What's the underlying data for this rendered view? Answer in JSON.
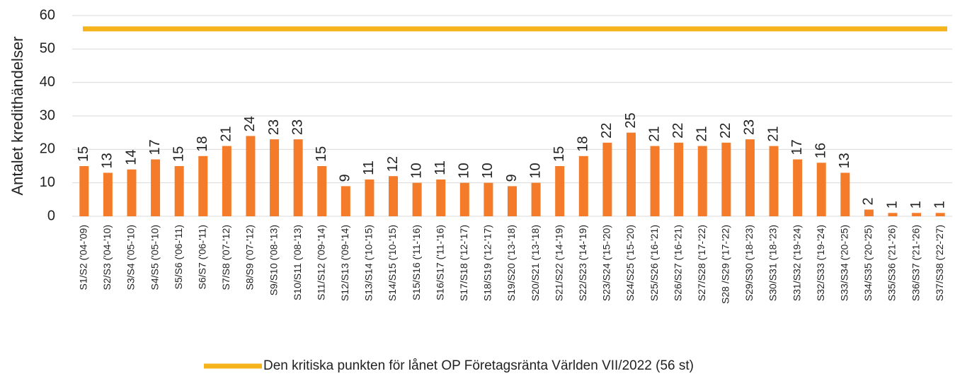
{
  "chart_data": {
    "type": "bar",
    "y_label": "Antalet kredithändelser",
    "categories": [
      "S1/S2 ('04-'09)",
      "S2/S3 ('04-'10)",
      "S3/S4 ('05-'10)",
      "S4/S5 ('05-'10)",
      "S5/S6 ('06-'11)",
      "S6/S7 ('06-'11)",
      "S7/S8 ('07-'12)",
      "S8/S9 ('07-'12)",
      "S9/S10 ('08-'13)",
      "S10/S11 ('08-'13)",
      "S11/S12 ('09-'14)",
      "S12/S13 ('09-'14)",
      "S13/S14 ('10-'15)",
      "S14/S15 ('10-'15)",
      "S15/S16 ('11-'16)",
      "S16/S17 ('11-'16)",
      "S17/S18 ('12-'17)",
      "S18/S19 ('12-'17)",
      "S19/S20 ('13-'18)",
      "S20/S21 ('13-'18)",
      "S21/S22 ('14-'19)",
      "S22/S23 ('14-'19)",
      "S23/S24 ('15-'20)",
      "S24/S25 ('15-'20)",
      "S25/S26 ('16-'21)",
      "S26/S27 ('16-'21)",
      "S27/S28 ('17-'22)",
      "S28 /S29 ('17-'22)",
      "S29/S30 ('18-'23)",
      "S30/S31 ('18-'23)",
      "S31/S32 ('19-'24)",
      "S32/S33 ('19-'24)",
      "S33/S34 ('20-'25)",
      "S34/S35 ('20-'25)",
      "S35/S36 ('21-'26)",
      "S36/S37 ('21-'26)",
      "S37/S38 ('22-'27)"
    ],
    "values": [
      15,
      13,
      14,
      17,
      15,
      18,
      21,
      24,
      23,
      23,
      15,
      9,
      11,
      12,
      10,
      11,
      10,
      10,
      9,
      10,
      15,
      18,
      22,
      25,
      21,
      22,
      21,
      22,
      23,
      21,
      17,
      16,
      13,
      2,
      1,
      1,
      1
    ],
    "color": "#f47b2a",
    "threshold": {
      "name": "Den kritiska punkten för lånet OP Företagsränta Världen VII/2022 (56 st)",
      "value": 56,
      "color": "#f5b31c"
    },
    "ylim": [
      0,
      60
    ],
    "yticks": [
      0,
      10,
      20,
      30,
      40,
      50,
      60
    ],
    "grid": true
  }
}
